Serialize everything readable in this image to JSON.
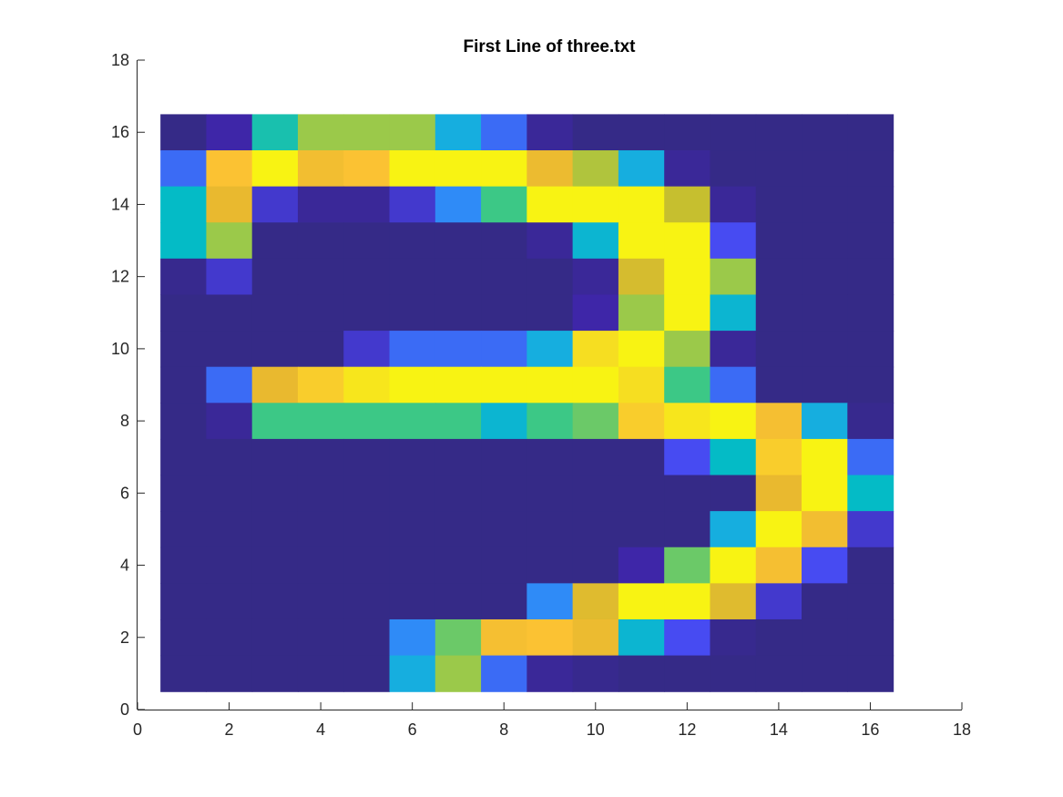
{
  "chart_data": {
    "type": "heatmap",
    "title": "First Line of three.txt",
    "xlabel": "",
    "ylabel": "",
    "xlim": [
      0,
      18
    ],
    "ylim": [
      0,
      18
    ],
    "x_ticks": [
      0,
      2,
      4,
      6,
      8,
      10,
      12,
      14,
      16,
      18
    ],
    "y_ticks": [
      0,
      2,
      4,
      6,
      8,
      10,
      12,
      14,
      16,
      18
    ],
    "grid": false,
    "colormap": "parula",
    "clim": [
      0,
      1
    ],
    "cell_x_centers": [
      1,
      2,
      3,
      4,
      5,
      6,
      7,
      8,
      9,
      10,
      11,
      12,
      13,
      14,
      15,
      16
    ],
    "cell_y_centers_top_to_bottom": [
      16,
      15,
      14,
      13,
      12,
      11,
      10,
      9,
      8,
      7,
      6,
      5,
      4,
      3,
      2,
      1
    ],
    "values_top_to_bottom": [
      [
        0.0,
        0.1,
        0.5,
        0.65,
        0.65,
        0.65,
        0.4,
        0.25,
        0.05,
        0.0,
        0.0,
        0.0,
        0.0,
        0.0,
        0.0,
        0.0
      ],
      [
        0.25,
        0.88,
        0.98,
        0.85,
        0.88,
        0.98,
        0.98,
        0.98,
        0.83,
        0.7,
        0.4,
        0.05,
        0.0,
        0.0,
        0.0,
        0.0
      ],
      [
        0.47,
        0.82,
        0.15,
        0.05,
        0.05,
        0.15,
        0.3,
        0.55,
        0.98,
        0.98,
        0.98,
        0.75,
        0.05,
        0.0,
        0.0,
        0.0
      ],
      [
        0.47,
        0.65,
        0.0,
        0.0,
        0.0,
        0.0,
        0.0,
        0.0,
        0.05,
        0.44,
        0.98,
        0.98,
        0.2,
        0.0,
        0.0,
        0.0
      ],
      [
        0.02,
        0.15,
        0.0,
        0.0,
        0.0,
        0.0,
        0.0,
        0.0,
        0.0,
        0.05,
        0.78,
        0.98,
        0.65,
        0.0,
        0.0,
        0.0
      ],
      [
        0.0,
        0.0,
        0.0,
        0.0,
        0.0,
        0.0,
        0.0,
        0.0,
        0.0,
        0.1,
        0.65,
        0.98,
        0.44,
        0.0,
        0.0,
        0.0
      ],
      [
        0.0,
        0.0,
        0.0,
        0.0,
        0.15,
        0.25,
        0.25,
        0.25,
        0.4,
        0.93,
        0.98,
        0.65,
        0.05,
        0.0,
        0.0,
        0.0
      ],
      [
        0.0,
        0.25,
        0.82,
        0.9,
        0.95,
        0.98,
        0.98,
        0.98,
        0.98,
        0.98,
        0.93,
        0.55,
        0.25,
        0.0,
        0.0,
        0.0
      ],
      [
        0.0,
        0.05,
        0.55,
        0.55,
        0.55,
        0.55,
        0.55,
        0.44,
        0.55,
        0.6,
        0.9,
        0.95,
        0.98,
        0.86,
        0.4,
        0.02
      ],
      [
        0.0,
        0.0,
        0.0,
        0.0,
        0.0,
        0.0,
        0.0,
        0.0,
        0.0,
        0.0,
        0.0,
        0.2,
        0.47,
        0.9,
        0.98,
        0.25
      ],
      [
        0.0,
        0.0,
        0.0,
        0.0,
        0.0,
        0.0,
        0.0,
        0.0,
        0.0,
        0.0,
        0.0,
        0.0,
        0.0,
        0.82,
        0.98,
        0.47
      ],
      [
        0.0,
        0.0,
        0.0,
        0.0,
        0.0,
        0.0,
        0.0,
        0.0,
        0.0,
        0.0,
        0.0,
        0.0,
        0.4,
        0.98,
        0.85,
        0.15
      ],
      [
        0.0,
        0.0,
        0.0,
        0.0,
        0.0,
        0.0,
        0.0,
        0.0,
        0.0,
        0.0,
        0.1,
        0.6,
        0.98,
        0.86,
        0.2,
        0.0
      ],
      [
        0.0,
        0.0,
        0.0,
        0.0,
        0.0,
        0.0,
        0.0,
        0.0,
        0.3,
        0.8,
        0.98,
        0.98,
        0.8,
        0.15,
        0.0,
        0.0
      ],
      [
        0.0,
        0.0,
        0.0,
        0.0,
        0.0,
        0.3,
        0.6,
        0.86,
        0.88,
        0.83,
        0.44,
        0.2,
        0.02,
        0.0,
        0.0,
        0.0
      ],
      [
        0.0,
        0.0,
        0.0,
        0.0,
        0.0,
        0.4,
        0.65,
        0.25,
        0.05,
        0.02,
        0.0,
        0.0,
        0.0,
        0.0,
        0.0,
        0.0
      ]
    ]
  }
}
